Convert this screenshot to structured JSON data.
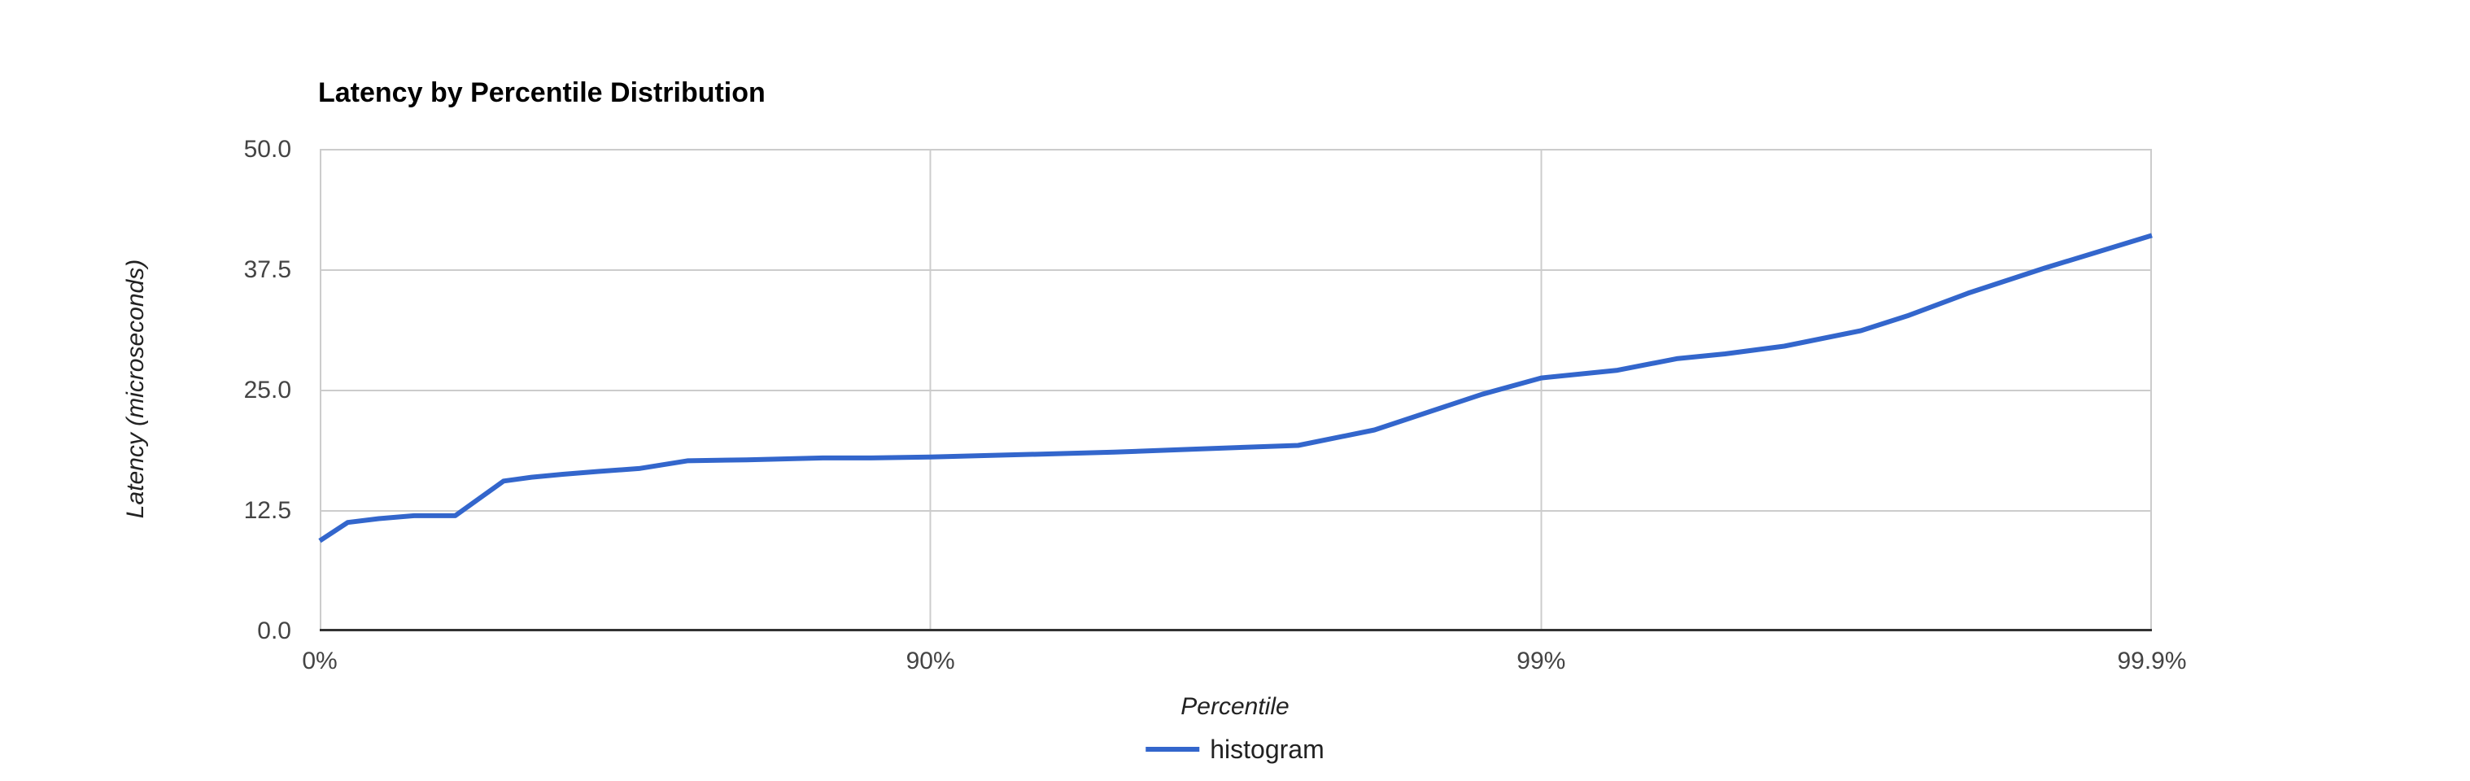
{
  "title": "Latency by Percentile Distribution",
  "colors": {
    "background": "#ffffff",
    "series": "#3366cc",
    "gridline": "#cccccc",
    "baseline": "#333333",
    "tick_label": "#444444",
    "title": "#000000",
    "axis_title": "#222222"
  },
  "y_axis": {
    "title": "Latency (microseconds)",
    "ticks": [
      {
        "label": "0.0",
        "value": 0
      },
      {
        "label": "12.5",
        "value": 12.5
      },
      {
        "label": "25.0",
        "value": 25
      },
      {
        "label": "37.5",
        "value": 37.5
      },
      {
        "label": "50.0",
        "value": 50
      }
    ]
  },
  "x_axis": {
    "title": "Percentile",
    "ticks": [
      {
        "label": "0%",
        "percentile": 0
      },
      {
        "label": "90%",
        "percentile": 90
      },
      {
        "label": "99%",
        "percentile": 99
      },
      {
        "label": "99.9%",
        "percentile": 99.9
      }
    ]
  },
  "legend": {
    "label": "histogram",
    "position": "bottom"
  },
  "chart_data": {
    "type": "line",
    "title": "Latency by Percentile Distribution",
    "xlabel": "Percentile",
    "ylabel": "Latency (microseconds)",
    "x_scale": "log10(1/(1-p)) percentile axis",
    "x_decades": 3,
    "x_tick_labels": [
      "0%",
      "90%",
      "99%",
      "99.9%"
    ],
    "ylim": [
      0,
      50
    ],
    "grid": true,
    "legend_position": "bottom",
    "series": [
      {
        "name": "histogram",
        "color": "#3366cc",
        "points": [
          [
            0,
            9.4
          ],
          [
            10,
            11.3
          ],
          [
            20,
            11.7
          ],
          [
            30,
            12.0
          ],
          [
            40,
            12.0
          ],
          [
            50,
            15.6
          ],
          [
            55,
            16.0
          ],
          [
            60,
            16.3
          ],
          [
            65,
            16.6
          ],
          [
            70,
            16.9
          ],
          [
            75,
            17.7
          ],
          [
            80,
            17.8
          ],
          [
            85,
            18.0
          ],
          [
            87.5,
            18.0
          ],
          [
            90,
            18.1
          ],
          [
            92.5,
            18.3
          ],
          [
            95,
            18.6
          ],
          [
            96.25,
            18.9
          ],
          [
            97.5,
            19.3
          ],
          [
            98.125,
            20.9
          ],
          [
            98.75,
            24.6
          ],
          [
            99,
            26.3
          ],
          [
            99.25,
            27.1
          ],
          [
            99.4,
            28.3
          ],
          [
            99.5,
            28.8
          ],
          [
            99.6,
            29.6
          ],
          [
            99.7,
            31.2
          ],
          [
            99.75,
            32.8
          ],
          [
            99.8,
            35.1
          ],
          [
            99.85,
            37.7
          ],
          [
            99.9,
            41.1
          ]
        ]
      }
    ]
  }
}
